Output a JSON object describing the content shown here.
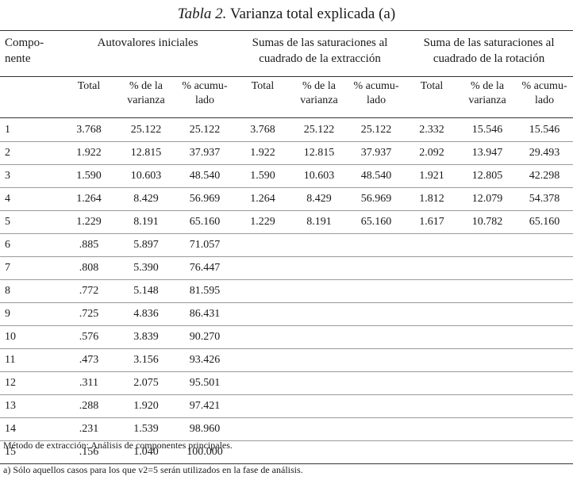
{
  "title": {
    "prefix": "Tabla 2.",
    "text": "Varianza total explicada (a)"
  },
  "headers": {
    "component": "Compo-\nnente",
    "groups": [
      "Autovalores iniciales",
      "Sumas de las saturaciones al\ncuadrado de la extracción",
      "Suma de las saturaciones al\ncuadrado de la rotación"
    ],
    "subcolumns": [
      "Total",
      "% de la\nvarianza",
      "% acumu-\nlado"
    ]
  },
  "rows": [
    [
      "1",
      "3.768",
      "25.122",
      "25.122",
      "3.768",
      "25.122",
      "25.122",
      "2.332",
      "15.546",
      "15.546"
    ],
    [
      "2",
      "1.922",
      "12.815",
      "37.937",
      "1.922",
      "12.815",
      "37.937",
      "2.092",
      "13.947",
      "29.493"
    ],
    [
      "3",
      "1.590",
      "10.603",
      "48.540",
      "1.590",
      "10.603",
      "48.540",
      "1.921",
      "12.805",
      "42.298"
    ],
    [
      "4",
      "1.264",
      "8.429",
      "56.969",
      "1.264",
      "8.429",
      "56.969",
      "1.812",
      "12.079",
      "54.378"
    ],
    [
      "5",
      "1.229",
      "8.191",
      "65.160",
      "1.229",
      "8.191",
      "65.160",
      "1.617",
      "10.782",
      "65.160"
    ],
    [
      "6",
      ".885",
      "5.897",
      "71.057",
      "",
      "",
      "",
      "",
      "",
      ""
    ],
    [
      "7",
      ".808",
      "5.390",
      "76.447",
      "",
      "",
      "",
      "",
      "",
      ""
    ],
    [
      "8",
      ".772",
      "5.148",
      "81.595",
      "",
      "",
      "",
      "",
      "",
      ""
    ],
    [
      "9",
      ".725",
      "4.836",
      "86.431",
      "",
      "",
      "",
      "",
      "",
      ""
    ],
    [
      "10",
      ".576",
      "3.839",
      "90.270",
      "",
      "",
      "",
      "",
      "",
      ""
    ],
    [
      "11",
      ".473",
      "3.156",
      "93.426",
      "",
      "",
      "",
      "",
      "",
      ""
    ],
    [
      "12",
      ".311",
      "2.075",
      "95.501",
      "",
      "",
      "",
      "",
      "",
      ""
    ],
    [
      "13",
      ".288",
      "1.920",
      "97.421",
      "",
      "",
      "",
      "",
      "",
      ""
    ],
    [
      "14",
      ".231",
      "1.539",
      "98.960",
      "",
      "",
      "",
      "",
      "",
      ""
    ],
    [
      "15",
      ".156",
      "1.040",
      "100.000",
      "",
      "",
      "",
      "",
      "",
      ""
    ]
  ],
  "notes": [
    "Método de extracción: Análisis de componentes principales.",
    "a) Sólo aquellos casos para los que v2=5 serán utilizados en la fase de análisis."
  ]
}
